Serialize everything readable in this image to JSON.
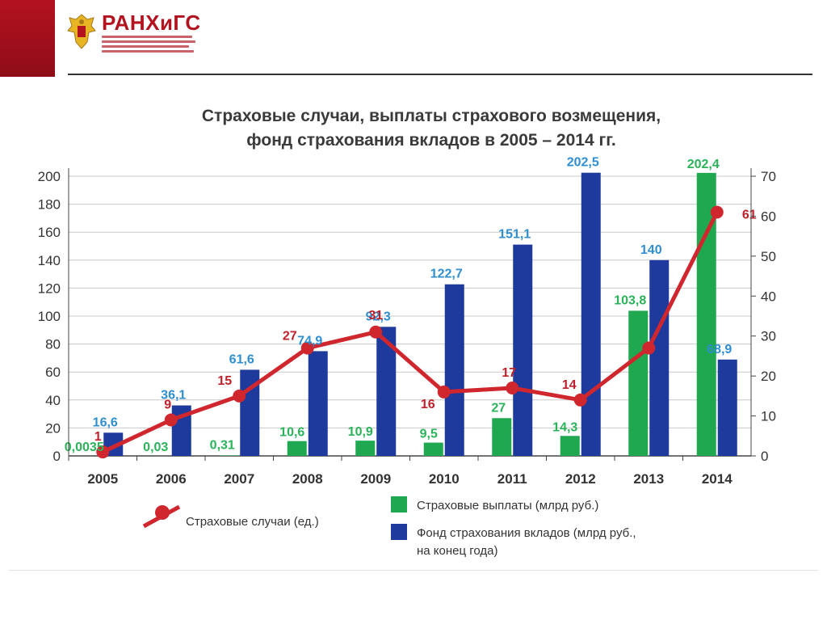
{
  "header": {
    "logo_text": "РАНХиГС",
    "brand_color": "#b3121f"
  },
  "chart_data": {
    "type": "bar",
    "title": [
      "Страховые случаи, выплаты страхового возмещения,",
      "фонд страхования вкладов в 2005 – 2014 гг."
    ],
    "categories": [
      "2005",
      "2006",
      "2007",
      "2008",
      "2009",
      "2010",
      "2011",
      "2012",
      "2013",
      "2014"
    ],
    "ylim": [
      0,
      200
    ],
    "yticks": [
      0,
      20,
      40,
      60,
      80,
      100,
      120,
      140,
      160,
      180,
      200
    ],
    "y2lim": [
      0,
      70
    ],
    "y2ticks": [
      0,
      10,
      20,
      30,
      40,
      50,
      60,
      70
    ],
    "grid": true,
    "series": [
      {
        "name": "Страховые выплаты (млрд руб.)",
        "kind": "bar",
        "axis": "left",
        "color": "#1fa84f",
        "label_color": "#2bb35a",
        "values": [
          0.0035,
          0.03,
          0.31,
          10.6,
          10.9,
          9.5,
          27,
          14.3,
          103.8,
          202.4
        ],
        "labels": [
          "0,0035",
          "0,03",
          "0,31",
          "10,6",
          "10,9",
          "9,5",
          "27",
          "14,3",
          "103,8",
          "202,4"
        ]
      },
      {
        "name": "Фонд страхования вкладов (млрд руб., на конец года)",
        "name_lines": [
          "Фонд страхования вкладов (млрд руб.,",
          "на конец года)"
        ],
        "kind": "bar",
        "axis": "left",
        "color": "#1d3a9c",
        "label_color": "#2f8ed0",
        "values": [
          16.6,
          36.1,
          61.6,
          74.9,
          92.3,
          122.7,
          151.1,
          202.5,
          140,
          68.9
        ],
        "labels": [
          "16,6",
          "36,1",
          "61,6",
          "74,9",
          "92,3",
          "122,7",
          "151,1",
          "202,5",
          "140",
          "68,9"
        ]
      },
      {
        "name": "Страховые случаи (ед.)",
        "kind": "line",
        "axis": "right",
        "color": "#d0262e",
        "label_color": "#c0202a",
        "values": [
          1,
          9,
          15,
          27,
          31,
          16,
          17,
          14,
          27,
          61
        ],
        "labels": [
          "1",
          "9",
          "15",
          "27",
          "31",
          "16",
          "17",
          "14",
          "",
          "61"
        ]
      }
    ],
    "legend": "bottom"
  }
}
